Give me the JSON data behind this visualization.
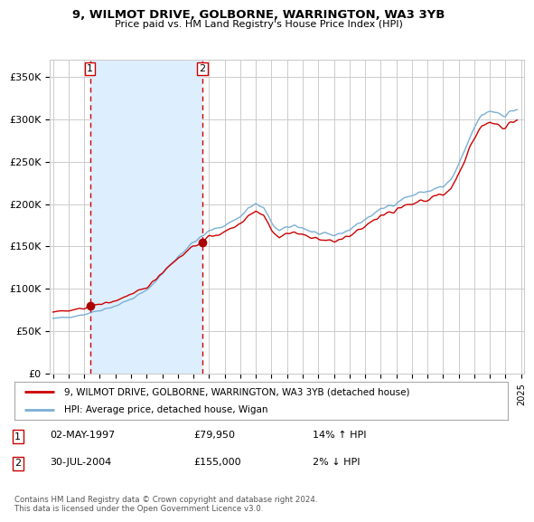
{
  "title": "9, WILMOT DRIVE, GOLBORNE, WARRINGTON, WA3 3YB",
  "subtitle": "Price paid vs. HM Land Registry's House Price Index (HPI)",
  "legend_line1": "9, WILMOT DRIVE, GOLBORNE, WARRINGTON, WA3 3YB (detached house)",
  "legend_line2": "HPI: Average price, detached house, Wigan",
  "transaction1_date": "02-MAY-1997",
  "transaction1_price": "£79,950",
  "transaction1_hpi": "14% ↑ HPI",
  "transaction2_date": "30-JUL-2004",
  "transaction2_price": "£155,000",
  "transaction2_hpi": "2% ↓ HPI",
  "footer": "Contains HM Land Registry data © Crown copyright and database right 2024.\nThis data is licensed under the Open Government Licence v3.0.",
  "hpi_color": "#7bafd4",
  "price_color": "#cc0000",
  "marker_color": "#aa0000",
  "shade_color": "#ddeeff",
  "dashed_line_color": "#cc0000",
  "background_color": "#ffffff",
  "grid_color": "#cccccc",
  "ylim": [
    0,
    370000
  ],
  "yticks": [
    0,
    50000,
    100000,
    150000,
    200000,
    250000,
    300000,
    350000
  ],
  "ytick_labels": [
    "£0",
    "£50K",
    "£100K",
    "£150K",
    "£200K",
    "£250K",
    "£300K",
    "£350K"
  ],
  "transaction1_x": 1997.37,
  "transaction1_y": 79950,
  "transaction2_x": 2004.58,
  "transaction2_y": 155000,
  "xlim_left": 1994.8,
  "xlim_right": 2025.2
}
